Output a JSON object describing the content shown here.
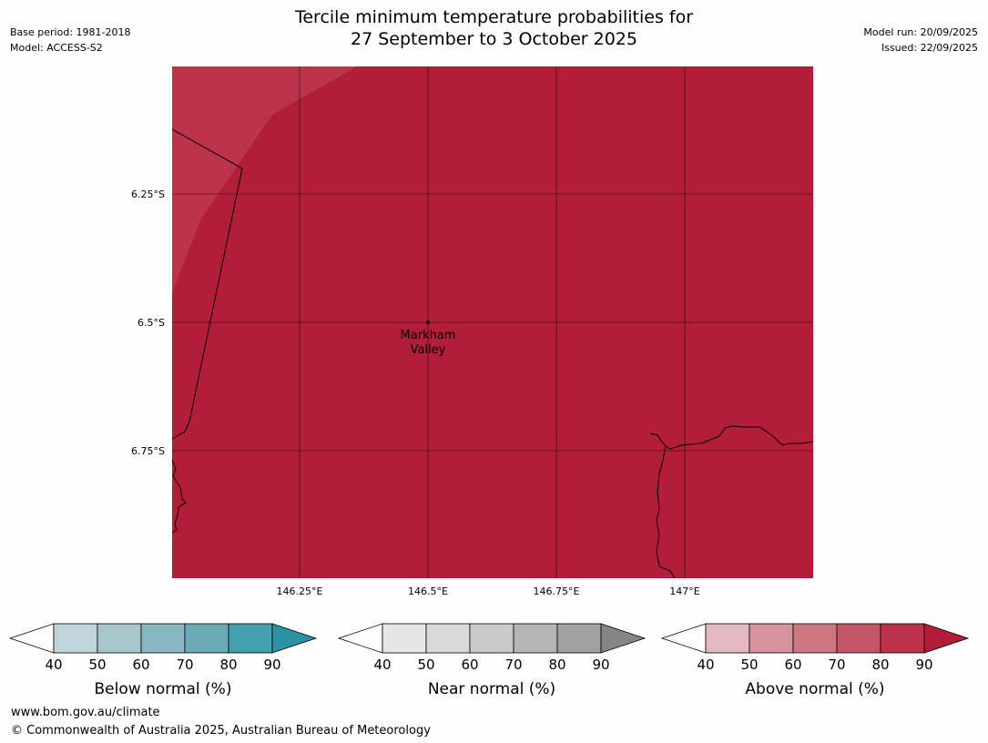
{
  "header": {
    "base_period": "Base period: 1981-2018",
    "model": "Model: ACCESS-S2",
    "model_run": "Model run: 20/09/2025",
    "issued": "Issued: 22/09/2025",
    "title_line1": "Tercile minimum temperature probabilities for",
    "title_line2": "27 September to 3 October 2025"
  },
  "map": {
    "fill_color": "#b21e38",
    "lighter_fill_color": "#bc344c",
    "lat_labels": [
      "6.25°S",
      "6.5°S",
      "6.75°S"
    ],
    "lon_labels": [
      "146.25°E",
      "146.5°E",
      "146.75°E",
      "147°E"
    ],
    "place_name_line1": "Markham",
    "place_name_line2": "Valley"
  },
  "colorbars": [
    {
      "name": "below-normal",
      "label": "Below normal (%)",
      "colors": [
        "#fefefe",
        "#bfd5db",
        "#a6c6cc",
        "#88b6c1",
        "#6aaab7",
        "#45a0ad",
        "#2a92a3"
      ],
      "ticks": [
        "40",
        "50",
        "60",
        "70",
        "80",
        "90"
      ]
    },
    {
      "name": "near-normal",
      "label": "Near normal (%)",
      "colors": [
        "#fefefe",
        "#e6e6e6",
        "#d9d9d9",
        "#cacaca",
        "#b5b5b5",
        "#a1a1a1",
        "#858585"
      ],
      "ticks": [
        "40",
        "50",
        "60",
        "70",
        "80",
        "90"
      ]
    },
    {
      "name": "above-normal",
      "label": "Above normal (%)",
      "colors": [
        "#fefefe",
        "#e2b9bf",
        "#d6939d",
        "#cc7781",
        "#c35668",
        "#bb3249",
        "#b21e38"
      ],
      "ticks": [
        "40",
        "50",
        "60",
        "70",
        "80",
        "90"
      ]
    }
  ],
  "footer": {
    "url": "www.bom.gov.au/climate",
    "copyright": "© Commonwealth of Australia 2025, Australian Bureau of Meteorology"
  }
}
